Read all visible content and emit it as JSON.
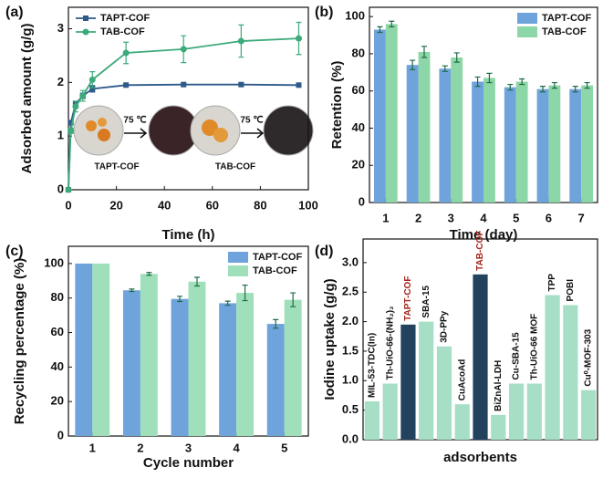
{
  "chart_data": [
    {
      "type": "line",
      "label": "(a)",
      "x_label": "Time (h)",
      "y_label": "Adsorbed amount (g/g)",
      "x": [
        0,
        1,
        3,
        6,
        10,
        24,
        48,
        72,
        96
      ],
      "xlim": [
        0,
        100
      ],
      "xticks": [
        0,
        20,
        40,
        60,
        80,
        100
      ],
      "ylim": [
        0,
        3.4
      ],
      "yticks": [
        0,
        1,
        2,
        3
      ],
      "legend": "upper left",
      "series": [
        {
          "name": "TAPT-COF",
          "color": "#2e5a8a",
          "marker": "square",
          "values": [
            0,
            1.25,
            1.6,
            1.75,
            1.88,
            1.95,
            1.96,
            1.96,
            1.95
          ],
          "errors": [
            0,
            0.04,
            0.05,
            0.05,
            0.06,
            0.02,
            0.02,
            0.02,
            0.02
          ]
        },
        {
          "name": "TAB-COF",
          "color": "#3daa7a",
          "marker": "circle",
          "values": [
            0,
            1.1,
            1.55,
            1.75,
            2.05,
            2.55,
            2.62,
            2.77,
            2.82
          ],
          "errors": [
            0,
            0.05,
            0.1,
            0.1,
            0.15,
            0.2,
            0.25,
            0.3,
            0.3
          ]
        }
      ],
      "annotations": [
        "75 ℃",
        "TAPT-COF",
        "75 ℃",
        "TAB-COF"
      ]
    },
    {
      "type": "bar",
      "label": "(b)",
      "x_label": "Time (day)",
      "y_label": "Retention (%)",
      "categories": [
        "1",
        "2",
        "3",
        "4",
        "5",
        "6",
        "7"
      ],
      "ylim": [
        0,
        105
      ],
      "yticks": [
        0,
        20,
        40,
        60,
        80,
        100
      ],
      "legend": "upper right",
      "series": [
        {
          "name": "TAPT-COF",
          "color": "#6fa3dc",
          "values": [
            93,
            74,
            72,
            65,
            62,
            61,
            61
          ],
          "errors": [
            1.5,
            2.5,
            1.5,
            2.5,
            1.5,
            1.5,
            1.5
          ]
        },
        {
          "name": "TAB-COF",
          "color": "#8dd6a7",
          "values": [
            96,
            81,
            78,
            67,
            65,
            63,
            63
          ],
          "errors": [
            1.5,
            3,
            2.5,
            2.5,
            1.5,
            1.5,
            1.5
          ]
        }
      ]
    },
    {
      "type": "bar",
      "label": "(c)",
      "x_label": "Cycle number",
      "y_label": "Recycling percentage (%)",
      "categories": [
        "1",
        "2",
        "3",
        "4",
        "5"
      ],
      "ylim": [
        0,
        110
      ],
      "yticks": [
        0,
        20,
        40,
        60,
        80,
        100
      ],
      "legend": "upper right",
      "series": [
        {
          "name": "TAPT-COF",
          "color": "#6fa3dc",
          "values": [
            100,
            84.5,
            79.5,
            77,
            65
          ],
          "errors": [
            0,
            0.7,
            1.5,
            1.2,
            2.5
          ]
        },
        {
          "name": "TAB-COF",
          "color": "#9fe0bb",
          "values": [
            100,
            94,
            89.5,
            83,
            79
          ],
          "errors": [
            0,
            0.8,
            2.5,
            4.5,
            4
          ]
        }
      ]
    },
    {
      "type": "bar",
      "label": "(d)",
      "x_label": "adsorbents",
      "y_label": "Iodine uptake (g/g)",
      "categories": [
        "MIL-53-TDC(In)",
        "Th-UiO-66-(NH₂)₂",
        "TAPT-COF",
        "SBA-15",
        "3D-PPy",
        "CuAcoAd",
        "TAB-COF",
        "BiZnAl-LDH",
        "Cu-SBA-15",
        "Th-UiO-66 MOF",
        "TPP",
        "POBI",
        "Cu⁰-MOF-303"
      ],
      "values": [
        0.65,
        0.95,
        1.95,
        2.0,
        1.58,
        0.6,
        2.8,
        0.42,
        0.95,
        0.95,
        2.45,
        2.28,
        0.84
      ],
      "colors": [
        "#a6dfc6",
        "#a6dfc6",
        "#23425e",
        "#a6dfc6",
        "#a6dfc6",
        "#a6dfc6",
        "#23425e",
        "#a6dfc6",
        "#a6dfc6",
        "#a6dfc6",
        "#a6dfc6",
        "#a6dfc6",
        "#a6dfc6"
      ],
      "label_colors": [
        "#111111",
        "#111111",
        "#a4261c",
        "#111111",
        "#111111",
        "#111111",
        "#a4261c",
        "#111111",
        "#111111",
        "#111111",
        "#111111",
        "#111111",
        "#111111"
      ],
      "ylim": [
        0,
        3.4
      ],
      "yticks": [
        {
          "value": 0,
          "label": "0.0"
        },
        0.5,
        {
          "value": 1,
          "label": "1.0"
        },
        1.5,
        {
          "value": 2,
          "label": "2.0"
        },
        2.5,
        {
          "value": 3,
          "label": "3.0"
        }
      ]
    }
  ]
}
